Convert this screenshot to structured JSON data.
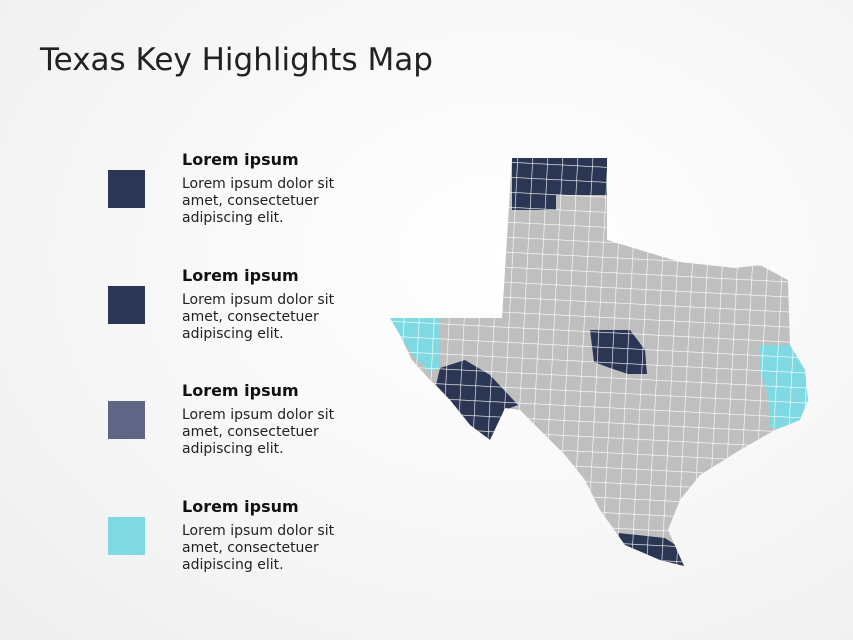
{
  "title": "Texas Key Highlights Map",
  "legend": [
    {
      "heading": "Lorem ipsum",
      "text": "Lorem ipsum dolor sit amet, consectetuer adipiscing elit.",
      "color": "#2b3654"
    },
    {
      "heading": "Lorem ipsum",
      "text": "Lorem ipsum dolor sit amet, consectetuer adipiscing elit.",
      "color": "#2b3654"
    },
    {
      "heading": "Lorem ipsum",
      "text": "Lorem ipsum dolor sit amet, consectetuer adipiscing elit.",
      "color": "#5f6585"
    },
    {
      "heading": "Lorem ipsum",
      "text": "Lorem ipsum dolor sit amet, consectetuer adipiscing elit.",
      "color": "#7fd9e2"
    }
  ]
}
